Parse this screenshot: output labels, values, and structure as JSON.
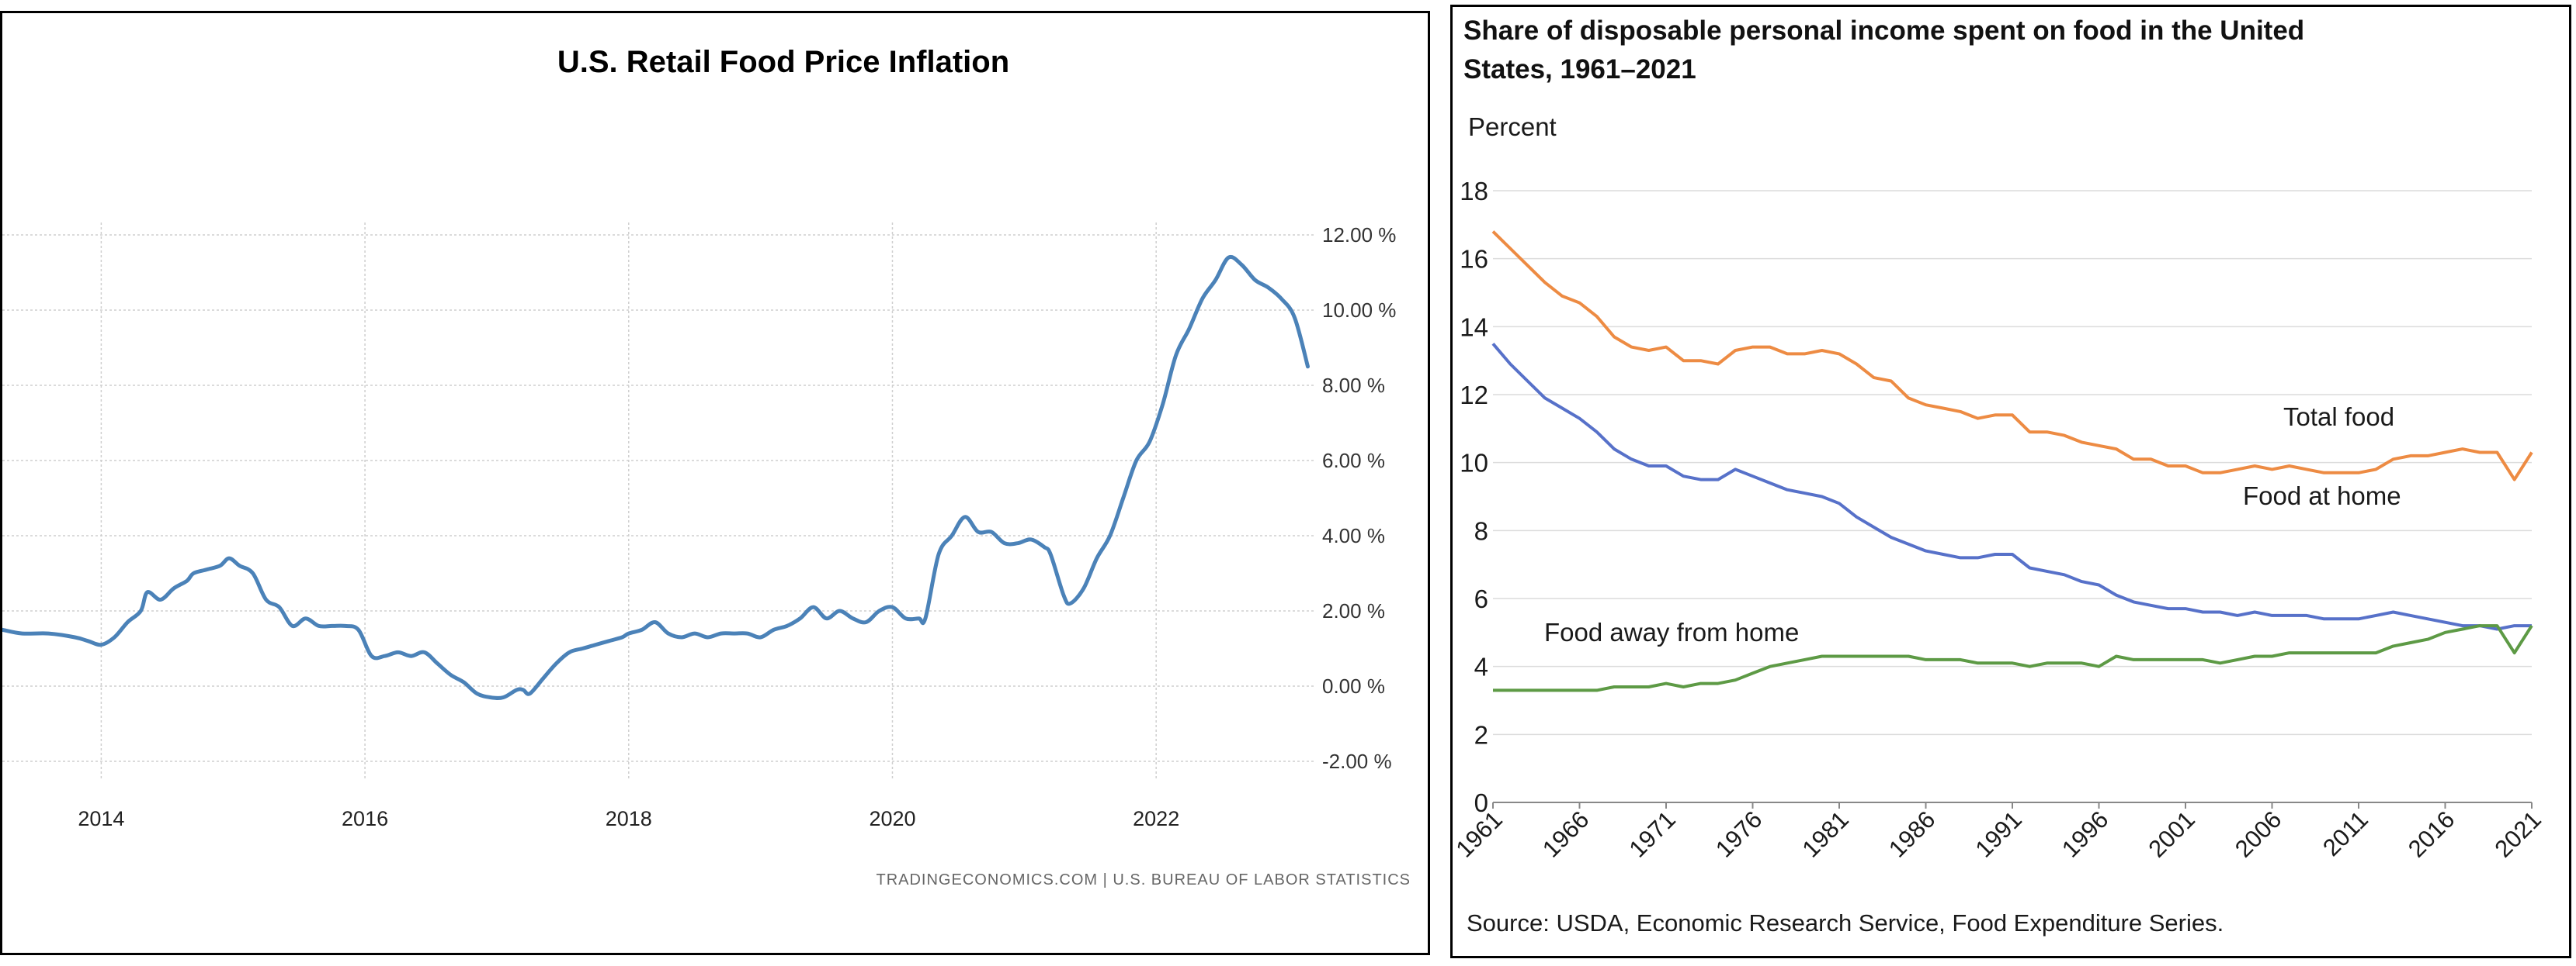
{
  "chart_data": [
    {
      "type": "line",
      "title": "U.S. Retail Food Price Inflation",
      "source": "TRADINGECONOMICS.COM  |  U.S. BUREAU OF LABOR STATISTICS",
      "x_ticks": [
        "2014",
        "2016",
        "2018",
        "2020",
        "2022"
      ],
      "y_ticks": [
        "12.00 %",
        "10.00 %",
        "8.00 %",
        "6.00 %",
        "4.00 %",
        "2.00 %",
        "0.00 %",
        "-2.00 %"
      ],
      "xlim": [
        2013.25,
        2023.2
      ],
      "ylim": [
        -2,
        12
      ],
      "grid": true,
      "series": [
        {
          "color": "#4b82b8",
          "x": [
            2013.25,
            2013.4,
            2013.6,
            2013.8,
            2013.9,
            2014.0,
            2014.1,
            2014.2,
            2014.3,
            2014.35,
            2014.45,
            2014.55,
            2014.65,
            2014.7,
            2014.8,
            2014.9,
            2014.97,
            2015.05,
            2015.15,
            2015.25,
            2015.35,
            2015.45,
            2015.55,
            2015.65,
            2015.75,
            2015.85,
            2015.95,
            2016.05,
            2016.15,
            2016.25,
            2016.35,
            2016.45,
            2016.55,
            2016.65,
            2016.75,
            2016.85,
            2016.95,
            2017.05,
            2017.15,
            2017.2,
            2017.25,
            2017.35,
            2017.45,
            2017.55,
            2017.65,
            2017.75,
            2017.85,
            2017.95,
            2018.0,
            2018.1,
            2018.2,
            2018.3,
            2018.4,
            2018.5,
            2018.6,
            2018.7,
            2018.8,
            2018.9,
            2019.0,
            2019.1,
            2019.2,
            2019.3,
            2019.4,
            2019.5,
            2019.6,
            2019.7,
            2019.8,
            2019.9,
            2020.0,
            2020.1,
            2020.2,
            2020.25,
            2020.35,
            2020.45,
            2020.55,
            2020.65,
            2020.75,
            2020.85,
            2020.95,
            2021.05,
            2021.15,
            2021.2,
            2021.3,
            2021.35,
            2021.45,
            2021.55,
            2021.65,
            2021.75,
            2021.85,
            2021.95,
            2022.05,
            2022.15,
            2022.25,
            2022.35,
            2022.45,
            2022.55,
            2022.65,
            2022.75,
            2022.85,
            2022.95,
            2023.05,
            2023.15
          ],
          "y": [
            1.5,
            1.4,
            1.4,
            1.3,
            1.2,
            1.1,
            1.3,
            1.7,
            2.0,
            2.5,
            2.3,
            2.6,
            2.8,
            3.0,
            3.1,
            3.2,
            3.4,
            3.2,
            3.0,
            2.3,
            2.1,
            1.6,
            1.8,
            1.6,
            1.6,
            1.6,
            1.5,
            0.8,
            0.8,
            0.9,
            0.8,
            0.9,
            0.6,
            0.3,
            0.1,
            -0.2,
            -0.3,
            -0.3,
            -0.1,
            -0.1,
            -0.2,
            0.2,
            0.6,
            0.9,
            1.0,
            1.1,
            1.2,
            1.3,
            1.4,
            1.5,
            1.7,
            1.4,
            1.3,
            1.4,
            1.3,
            1.4,
            1.4,
            1.4,
            1.3,
            1.5,
            1.6,
            1.8,
            2.1,
            1.8,
            2.0,
            1.8,
            1.7,
            2.0,
            2.1,
            1.8,
            1.8,
            1.8,
            3.5,
            4.0,
            4.5,
            4.1,
            4.1,
            3.8,
            3.8,
            3.9,
            3.7,
            3.5,
            2.4,
            2.2,
            2.6,
            3.4,
            4.0,
            5.0,
            6.0,
            6.5,
            7.5,
            8.8,
            9.5,
            10.3,
            10.8,
            11.4,
            11.2,
            10.8,
            10.6,
            10.3,
            9.8,
            8.5
          ]
        }
      ]
    },
    {
      "type": "line",
      "title": "Share of disposable personal income spent on food in the United States, 1961–2021",
      "ylabel": "Percent",
      "source": "Source: USDA, Economic Research Service, Food Expenditure Series.",
      "x_ticks": [
        "1961",
        "1966",
        "1971",
        "1976",
        "1981",
        "1986",
        "1991",
        "1996",
        "2001",
        "2006",
        "2011",
        "2016",
        "2021"
      ],
      "y_ticks": [
        "18",
        "16",
        "14",
        "12",
        "10",
        "8",
        "6",
        "4",
        "2",
        "0"
      ],
      "xlim": [
        1961,
        2021
      ],
      "ylim": [
        0,
        18
      ],
      "grid": true,
      "x": [
        1961,
        1962,
        1963,
        1964,
        1965,
        1966,
        1967,
        1968,
        1969,
        1970,
        1971,
        1972,
        1973,
        1974,
        1975,
        1976,
        1977,
        1978,
        1979,
        1980,
        1981,
        1982,
        1983,
        1984,
        1985,
        1986,
        1987,
        1988,
        1989,
        1990,
        1991,
        1992,
        1993,
        1994,
        1995,
        1996,
        1997,
        1998,
        1999,
        2000,
        2001,
        2002,
        2003,
        2004,
        2005,
        2006,
        2007,
        2008,
        2009,
        2010,
        2011,
        2012,
        2013,
        2014,
        2015,
        2016,
        2017,
        2018,
        2019,
        2020,
        2021
      ],
      "series": [
        {
          "name": "Total food",
          "color": "#ed8b43",
          "values": [
            16.8,
            16.3,
            15.8,
            15.3,
            14.9,
            14.7,
            14.3,
            13.7,
            13.4,
            13.3,
            13.4,
            13.0,
            13.0,
            12.9,
            13.3,
            13.4,
            13.4,
            13.2,
            13.2,
            13.3,
            13.2,
            12.9,
            12.5,
            12.4,
            11.9,
            11.7,
            11.6,
            11.5,
            11.3,
            11.4,
            11.4,
            10.9,
            10.9,
            10.8,
            10.6,
            10.5,
            10.4,
            10.1,
            10.1,
            9.9,
            9.9,
            9.7,
            9.7,
            9.8,
            9.9,
            9.8,
            9.9,
            9.8,
            9.7,
            9.7,
            9.7,
            9.8,
            10.1,
            10.2,
            10.2,
            10.3,
            10.4,
            10.3,
            10.3,
            9.5,
            10.3
          ]
        },
        {
          "name": "Food at home",
          "color": "#5771c9",
          "values": [
            13.5,
            12.9,
            12.4,
            11.9,
            11.6,
            11.3,
            10.9,
            10.4,
            10.1,
            9.9,
            9.9,
            9.6,
            9.5,
            9.5,
            9.8,
            9.6,
            9.4,
            9.2,
            9.1,
            9.0,
            8.8,
            8.4,
            8.1,
            7.8,
            7.6,
            7.4,
            7.3,
            7.2,
            7.2,
            7.3,
            7.3,
            6.9,
            6.8,
            6.7,
            6.5,
            6.4,
            6.1,
            5.9,
            5.8,
            5.7,
            5.7,
            5.6,
            5.6,
            5.5,
            5.6,
            5.5,
            5.5,
            5.5,
            5.4,
            5.4,
            5.4,
            5.5,
            5.6,
            5.5,
            5.4,
            5.3,
            5.2,
            5.2,
            5.1,
            5.2,
            5.2
          ]
        },
        {
          "name": "Food away from home",
          "color": "#5d9a45",
          "values": [
            3.3,
            3.3,
            3.3,
            3.3,
            3.3,
            3.3,
            3.3,
            3.4,
            3.4,
            3.4,
            3.5,
            3.4,
            3.5,
            3.5,
            3.6,
            3.8,
            4.0,
            4.1,
            4.2,
            4.3,
            4.3,
            4.3,
            4.3,
            4.3,
            4.3,
            4.2,
            4.2,
            4.2,
            4.1,
            4.1,
            4.1,
            4.0,
            4.1,
            4.1,
            4.1,
            4.0,
            4.3,
            4.2,
            4.2,
            4.2,
            4.2,
            4.2,
            4.1,
            4.2,
            4.3,
            4.3,
            4.4,
            4.4,
            4.4,
            4.4,
            4.4,
            4.4,
            4.6,
            4.7,
            4.8,
            5.0,
            5.1,
            5.2,
            5.2,
            4.4,
            5.2
          ]
        }
      ]
    }
  ]
}
